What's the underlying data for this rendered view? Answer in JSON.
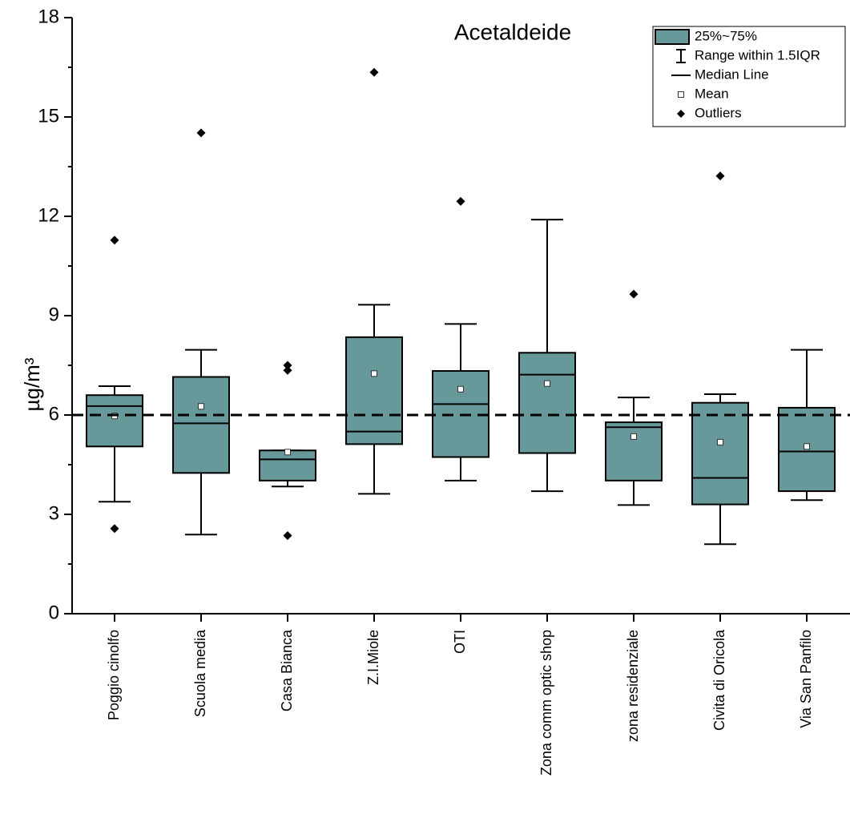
{
  "chart_data": {
    "type": "box",
    "title": "Acetaldeide",
    "y_label": "µg/m³",
    "categories": [
      "Poggio cinolfo",
      "Scuola media",
      "Casa Bianca",
      "Z.I.Miole",
      "OTI",
      "Zona comm optic shop",
      "zona residenziale",
      "Civita di Oricola",
      "Via San Panfilo"
    ],
    "boxes": [
      {
        "whisker_low": 3.38,
        "q1": 5.05,
        "median": 6.27,
        "mean": 5.97,
        "q3": 6.6,
        "whisker_high": 6.87,
        "outliers": [
          11.28,
          2.57
        ]
      },
      {
        "whisker_low": 2.39,
        "q1": 4.25,
        "median": 5.75,
        "mean": 6.26,
        "q3": 7.15,
        "whisker_high": 7.97,
        "outliers": [
          14.52
        ]
      },
      {
        "whisker_low": 3.84,
        "q1": 4.02,
        "median": 4.66,
        "mean": 4.88,
        "q3": 4.93,
        "whisker_high": 4.93,
        "outliers": [
          7.5,
          7.35,
          2.36
        ]
      },
      {
        "whisker_low": 3.62,
        "q1": 5.12,
        "median": 5.5,
        "mean": 7.25,
        "q3": 8.35,
        "whisker_high": 9.33,
        "outliers": [
          16.35
        ]
      },
      {
        "whisker_low": 4.02,
        "q1": 4.73,
        "median": 6.33,
        "mean": 6.78,
        "q3": 7.33,
        "whisker_high": 8.75,
        "outliers": [
          12.45
        ]
      },
      {
        "whisker_low": 3.7,
        "q1": 4.85,
        "median": 7.22,
        "mean": 6.95,
        "q3": 7.88,
        "whisker_high": 11.9,
        "outliers": []
      },
      {
        "whisker_low": 3.28,
        "q1": 4.02,
        "median": 5.63,
        "mean": 5.35,
        "q3": 5.78,
        "whisker_high": 6.53,
        "outliers": [
          9.65
        ]
      },
      {
        "whisker_low": 2.1,
        "q1": 3.3,
        "median": 4.1,
        "mean": 5.18,
        "q3": 6.37,
        "whisker_high": 6.63,
        "outliers": [
          13.22
        ]
      },
      {
        "whisker_low": 3.43,
        "q1": 3.7,
        "median": 4.9,
        "mean": 5.05,
        "q3": 6.22,
        "whisker_high": 7.97,
        "outliers": []
      }
    ],
    "color": "#67999a",
    "reference_line": 6,
    "ylim": [
      0,
      18
    ],
    "yticks": [
      0,
      3,
      6,
      9,
      12,
      15,
      18
    ],
    "legend": [
      "25%~75%",
      "Range within 1.5IQR",
      "Median Line",
      "Mean",
      "Outliers"
    ],
    "legend_position": "upper right"
  }
}
